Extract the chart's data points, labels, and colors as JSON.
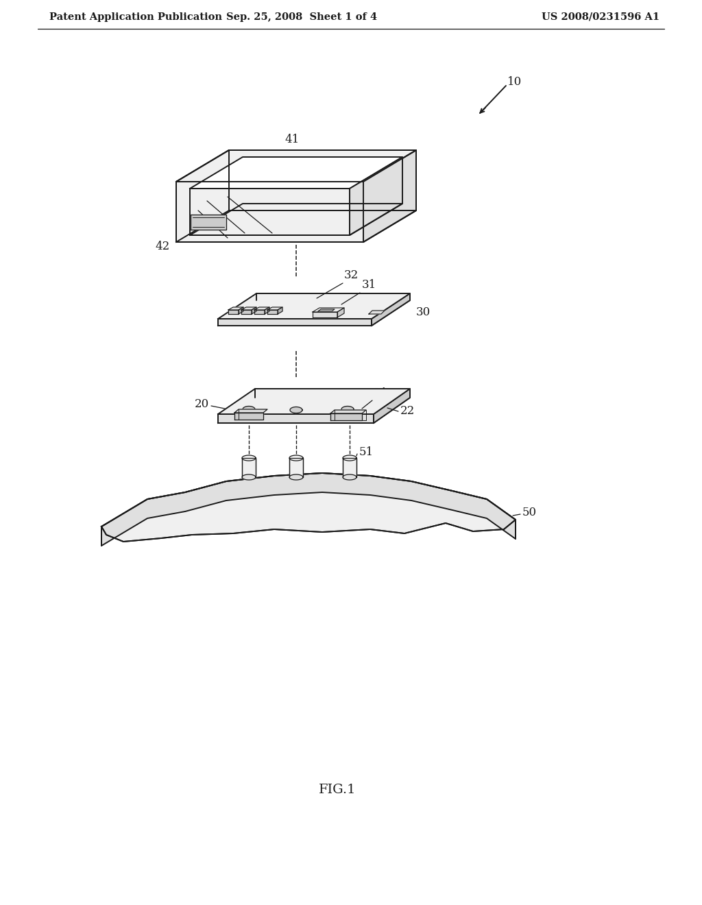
{
  "background_color": "#ffffff",
  "line_color": "#1a1a1a",
  "title_left": "Patent Application Publication",
  "title_center": "Sep. 25, 2008  Sheet 1 of 4",
  "title_right": "US 2008/0231596 A1",
  "fig_label": "FIG.1",
  "lw": 1.4,
  "tlw": 0.9,
  "header_fs": 10.5,
  "label_fs": 12,
  "fig_fs": 14
}
